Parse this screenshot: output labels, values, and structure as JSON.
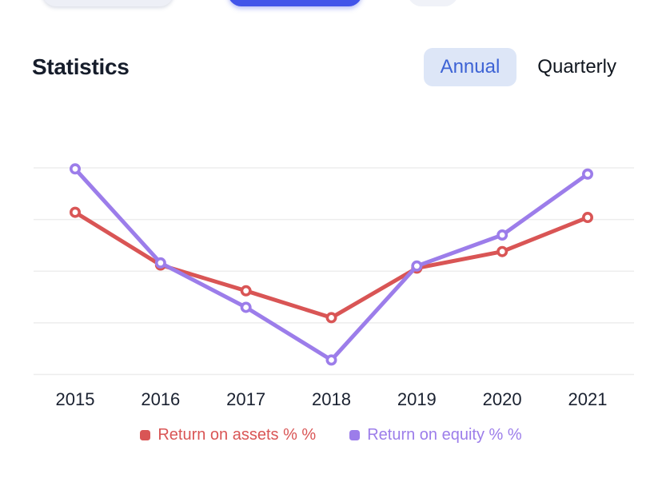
{
  "top_nav": {
    "pills": [
      {
        "name": "pill-left",
        "color": "#edeff6"
      },
      {
        "name": "pill-center",
        "color": "#4254e9"
      },
      {
        "name": "pill-right",
        "color": "#f0f2f8"
      }
    ]
  },
  "header": {
    "title": "Statistics",
    "toggle": {
      "options": [
        {
          "label": "Annual",
          "selected": true
        },
        {
          "label": "Quarterly",
          "selected": false
        }
      ]
    }
  },
  "chart_data": {
    "type": "line",
    "title": "Statistics",
    "categories": [
      "2015",
      "2016",
      "2017",
      "2018",
      "2019",
      "2020",
      "2021"
    ],
    "series": [
      {
        "name": "Return on assets % %",
        "color": "#d95555",
        "values": [
          15.7,
          10.6,
          8.1,
          5.5,
          10.3,
          11.9,
          15.2
        ]
      },
      {
        "name": "Return on equity % %",
        "color": "#9c7dea",
        "values": [
          19.9,
          10.8,
          6.5,
          1.4,
          10.5,
          13.5,
          19.4
        ]
      }
    ],
    "xlabel": "",
    "ylabel": "",
    "ylim": [
      0,
      25
    ],
    "gridline_values": [
      0,
      5,
      10,
      15,
      20
    ],
    "grid": "horizontal-only",
    "y_axis_labels_visible": false,
    "legend_position": "bottom",
    "marker": "open-circle",
    "gridline_color": "#ededed"
  }
}
